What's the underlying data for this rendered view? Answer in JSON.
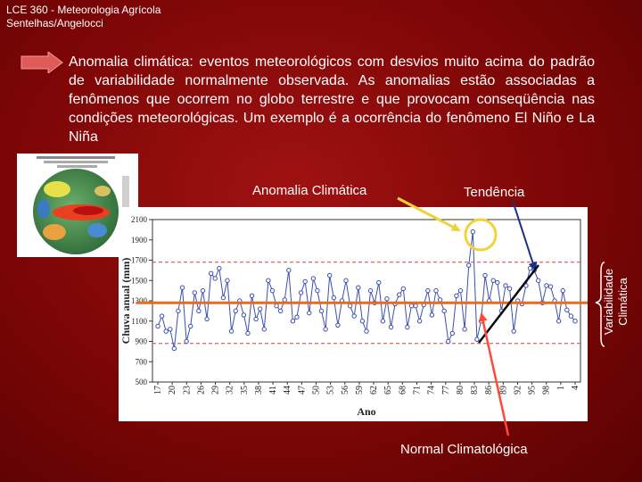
{
  "header": {
    "line1": "LCE 360 - Meteorologia Agrícola",
    "line2": "Sentelhas/Angelocci"
  },
  "body_text": "Anomalia climática: eventos meteorológicos com desvios muito acima do padrão de variabilidade normalmente observada. As anomalias estão associadas a fenômenos que ocorrem no globo terrestre e que provocam conseqüência nas condições meteorológicas. Um exemplo é a ocorrência do fenômeno El Niño e La Niña",
  "annotations": {
    "anomalia": "Anomalia Climática",
    "tendencia": "Tendência",
    "normal": "Normal Climatológica",
    "variabilidade_line1": "Variabilidade",
    "variabilidade_line2": "Climática"
  },
  "colors": {
    "background": "#8b0a0a",
    "arrow": "#e05a5a",
    "series": "#3a4fb0",
    "normal_line": "#e86a1f",
    "variability_dashed": "#d04040",
    "anomaly_arrow": "#f0d23a",
    "trend_arrow": "#1a2f8a",
    "normal_arrow": "#ff4a3a"
  },
  "chart_data": {
    "type": "line",
    "ylabel": "Chuva anual (mm)",
    "xlabel": "Ano",
    "ylim": [
      500,
      2100
    ],
    "yticks": [
      500,
      700,
      900,
      1100,
      1300,
      1500,
      1700,
      1900,
      2100
    ],
    "xticks": [
      "17",
      "20",
      "23",
      "26",
      "29",
      "32",
      "35",
      "38",
      "41",
      "44",
      "47",
      "50",
      "53",
      "56",
      "59",
      "62",
      "65",
      "68",
      "71",
      "74",
      "77",
      "80",
      "83",
      "86",
      "89",
      "92",
      "95",
      "98",
      "1",
      "4"
    ],
    "normal": 1280,
    "variability_band": [
      880,
      1680
    ],
    "series": [
      {
        "values": [
          1050,
          1150,
          1000,
          1020,
          830,
          1200,
          1430,
          900,
          1050,
          1380,
          1200,
          1400,
          1120,
          1570,
          1520,
          1620,
          1330,
          1500,
          1000,
          1200,
          1300,
          1160,
          980,
          1350,
          1120,
          1220,
          1020,
          1500,
          1400,
          1250,
          1200,
          1310,
          1600,
          1100,
          1140,
          1380,
          1490,
          1180,
          1520,
          1400,
          1200,
          1020,
          1550,
          1330,
          1060,
          1300,
          1500,
          1250,
          1150,
          1430,
          1100,
          1000,
          1400,
          1280,
          1480,
          1100,
          1320,
          1040,
          1270,
          1360,
          1420,
          1040,
          1250,
          1250,
          1100,
          1260,
          1400,
          1160,
          1400,
          1310,
          1200,
          900,
          980,
          1350,
          1400,
          1020,
          1650,
          1980,
          920,
          1100,
          1550,
          1300,
          1500,
          1480,
          1200,
          1450,
          1420,
          1000,
          1300,
          1270,
          1450,
          1620,
          1600,
          1500,
          1280,
          1450,
          1440,
          1300,
          1100,
          1400,
          1210,
          1150,
          1100
        ]
      }
    ]
  }
}
